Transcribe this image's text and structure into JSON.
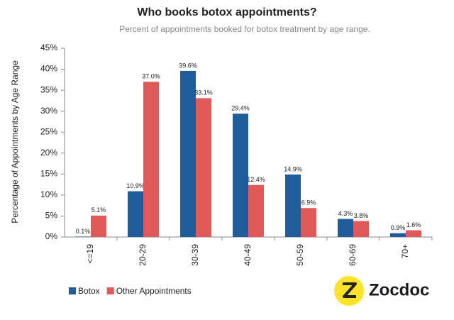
{
  "chart_data": {
    "type": "bar",
    "title": "Who books botox appointments?",
    "subtitle": "Percent of appointments booked for botox treatment by age range.",
    "y_label": "Percentage of Appointments by Age Range",
    "categories": [
      "<=19",
      "20-29",
      "30-39",
      "40-49",
      "50-59",
      "60-69",
      "70+"
    ],
    "series": [
      {
        "name": "Botox",
        "color": "#1f5c99",
        "values": [
          0.1,
          10.9,
          39.6,
          29.4,
          14.9,
          4.3,
          0.9
        ],
        "value_labels": [
          "0.1%",
          "10.9%",
          "39.6%",
          "29.4%",
          "14.9%",
          "4.3%",
          "0.9%"
        ]
      },
      {
        "name": "Other Appointments",
        "color": "#e05a5a",
        "values": [
          5.1,
          37.0,
          33.1,
          12.4,
          6.9,
          3.8,
          1.6
        ],
        "value_labels": [
          "5.1%",
          "37.0%",
          "33.1%",
          "12.4%",
          "6.9%",
          "3.8%",
          "1.6%"
        ]
      }
    ],
    "ylim": [
      0,
      45
    ],
    "yticks": [
      {
        "value": 0,
        "label": "0%"
      },
      {
        "value": 5,
        "label": "5%"
      },
      {
        "value": 10,
        "label": "10%"
      },
      {
        "value": 15,
        "label": "15%"
      },
      {
        "value": 20,
        "label": "20%"
      },
      {
        "value": 25,
        "label": "25%"
      },
      {
        "value": 30,
        "label": "30%"
      },
      {
        "value": 35,
        "label": "35%"
      },
      {
        "value": 40,
        "label": "40%"
      },
      {
        "value": 45,
        "label": "45%"
      }
    ],
    "grid": false,
    "legend": "bottom-left",
    "logo": "Zocdoc"
  }
}
